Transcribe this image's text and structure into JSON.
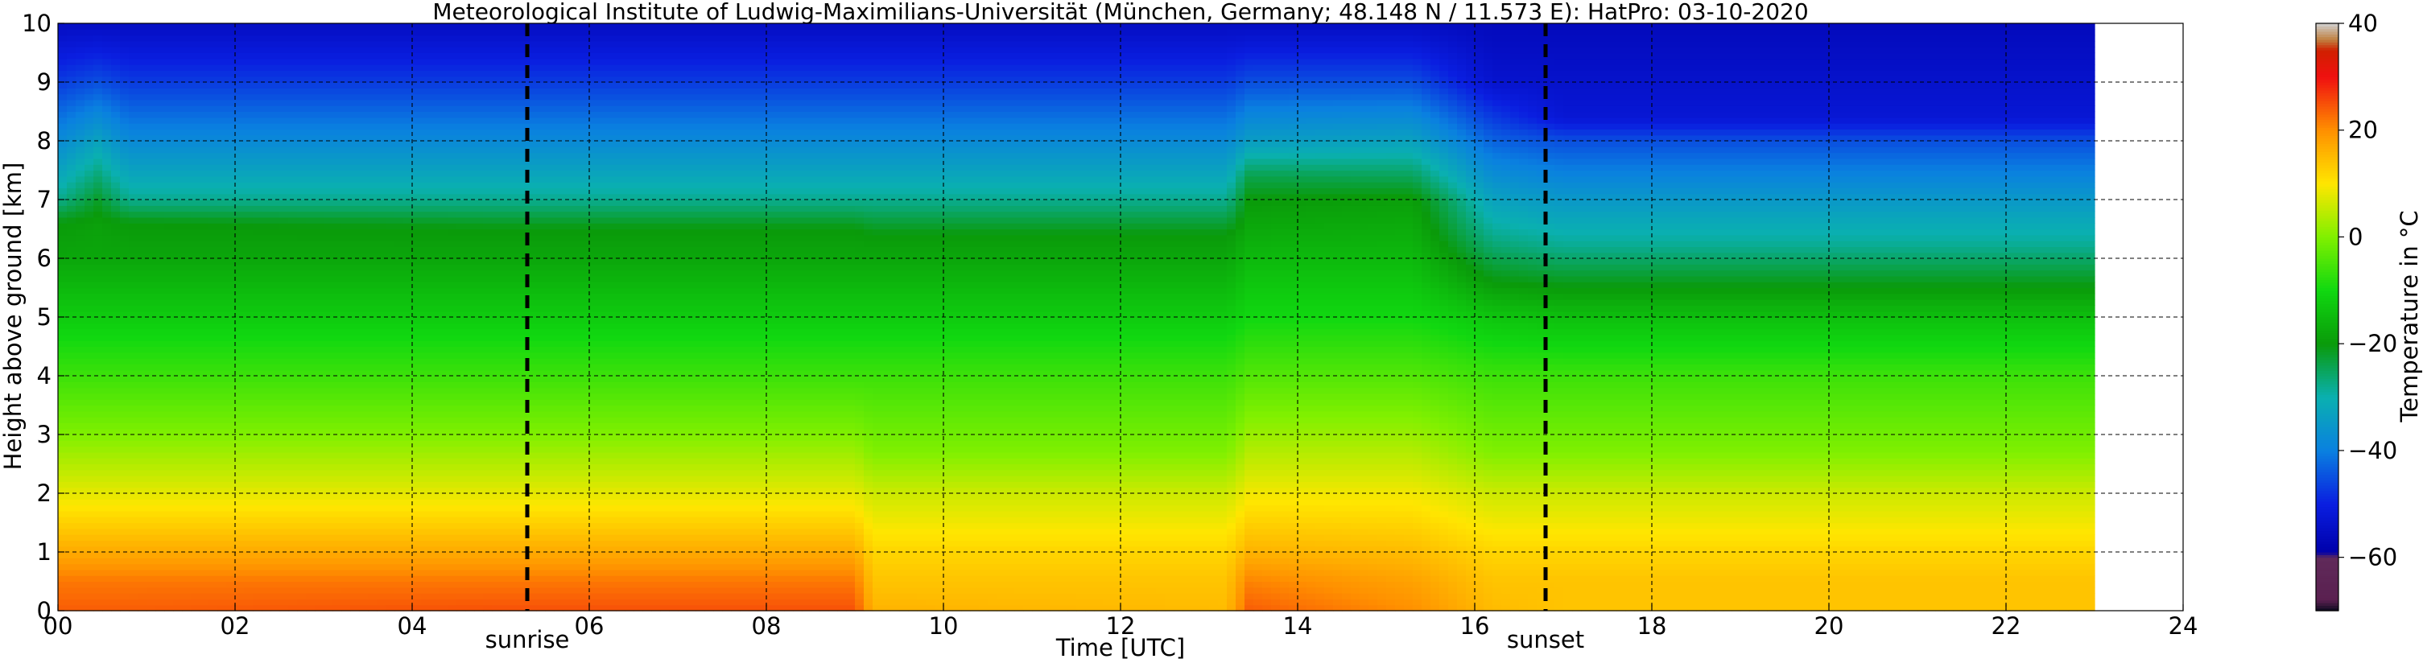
{
  "chart_data": {
    "type": "heatmap",
    "title": "Meteorological Institute of Ludwig-Maximilians-Universität (München, Germany; 48.148 N / 11.573 E):    HatPro: 03-10-2020",
    "xlabel": "Time [UTC]",
    "ylabel": "Height above ground [km]",
    "xlim": [
      0,
      24
    ],
    "ylim": [
      0,
      10
    ],
    "data_end_time": 23,
    "xticks": [
      {
        "value": 0,
        "label": "00"
      },
      {
        "value": 2,
        "label": "02"
      },
      {
        "value": 4,
        "label": "04"
      },
      {
        "value": 6,
        "label": "06"
      },
      {
        "value": 8,
        "label": "08"
      },
      {
        "value": 10,
        "label": "10"
      },
      {
        "value": 12,
        "label": "12"
      },
      {
        "value": 14,
        "label": "14"
      },
      {
        "value": 16,
        "label": "16"
      },
      {
        "value": 18,
        "label": "18"
      },
      {
        "value": 20,
        "label": "20"
      },
      {
        "value": 22,
        "label": "22"
      },
      {
        "value": 24,
        "label": "24"
      }
    ],
    "yticks": [
      {
        "value": 0,
        "label": "0"
      },
      {
        "value": 1,
        "label": "1"
      },
      {
        "value": 2,
        "label": "2"
      },
      {
        "value": 3,
        "label": "3"
      },
      {
        "value": 4,
        "label": "4"
      },
      {
        "value": 5,
        "label": "5"
      },
      {
        "value": 6,
        "label": "6"
      },
      {
        "value": 7,
        "label": "7"
      },
      {
        "value": 8,
        "label": "8"
      },
      {
        "value": 9,
        "label": "9"
      },
      {
        "value": 10,
        "label": "10"
      }
    ],
    "grid": true,
    "markers": [
      {
        "label": "sunrise",
        "time": 5.3
      },
      {
        "label": "sunset",
        "time": 16.8
      }
    ],
    "colorbar": {
      "label": "Temperature in °C",
      "min": -70,
      "max": 40,
      "ticks": [
        {
          "value": 40,
          "label": "40"
        },
        {
          "value": 20,
          "label": "20"
        },
        {
          "value": 0,
          "label": "0"
        },
        {
          "value": -20,
          "label": "−20"
        },
        {
          "value": -40,
          "label": "−40"
        },
        {
          "value": -60,
          "label": "−60"
        }
      ],
      "stops": [
        {
          "value": -70,
          "color": "#0a0a1e"
        },
        {
          "value": -68,
          "color": "#5a2050"
        },
        {
          "value": -60,
          "color": "#602a5a"
        },
        {
          "value": -59,
          "color": "#0000aa"
        },
        {
          "value": -50,
          "color": "#0a1ee0"
        },
        {
          "value": -40,
          "color": "#0a80e0"
        },
        {
          "value": -30,
          "color": "#0ab0b0"
        },
        {
          "value": -20,
          "color": "#0a9a0a"
        },
        {
          "value": -10,
          "color": "#10d810"
        },
        {
          "value": 0,
          "color": "#80f000"
        },
        {
          "value": 10,
          "color": "#ffe600"
        },
        {
          "value": 20,
          "color": "#ff9000"
        },
        {
          "value": 30,
          "color": "#f01010"
        },
        {
          "value": 35,
          "color": "#d02000"
        },
        {
          "value": 37,
          "color": "#c08040"
        },
        {
          "value": 40,
          "color": "#d0d0d0"
        }
      ]
    },
    "temperature_profiles": [
      {
        "time": 0.0,
        "heights": [
          0,
          0.5,
          1,
          2,
          3,
          4,
          5,
          6,
          6.6,
          7,
          8,
          9,
          10
        ],
        "temps": [
          24,
          22,
          17,
          8,
          0,
          -6,
          -12,
          -18,
          -20,
          -28,
          -38,
          -47,
          -55
        ]
      },
      {
        "time": 0.45,
        "heights": [
          0,
          0.5,
          1,
          2,
          3,
          4,
          5,
          6,
          6.6,
          7,
          8,
          9,
          10
        ],
        "temps": [
          24,
          22,
          17,
          8,
          0,
          -6,
          -12,
          -18,
          -19,
          -22,
          -33,
          -45,
          -55
        ]
      },
      {
        "time": 0.8,
        "heights": [
          0,
          0.5,
          1,
          2,
          3,
          4,
          5,
          6,
          6.6,
          7,
          8,
          9,
          10
        ],
        "temps": [
          24,
          22,
          17,
          8,
          0,
          -6,
          -12,
          -18,
          -20,
          -28,
          -38,
          -47,
          -55
        ]
      },
      {
        "time": 5.0,
        "heights": [
          0,
          0.5,
          1,
          2,
          3,
          4,
          5,
          6,
          6.5,
          7,
          8,
          9,
          10
        ],
        "temps": [
          25,
          22,
          17,
          8,
          0,
          -6,
          -12,
          -18,
          -20,
          -28,
          -38,
          -47,
          -55
        ]
      },
      {
        "time": 9.0,
        "heights": [
          0,
          0.5,
          1,
          2,
          3,
          4,
          5,
          6,
          6.5,
          7,
          8,
          9,
          10
        ],
        "temps": [
          25,
          22,
          17,
          8,
          0,
          -6,
          -12,
          -18,
          -20,
          -28,
          -38,
          -47,
          -55
        ]
      },
      {
        "time": 9.2,
        "heights": [
          0,
          0.5,
          1,
          2,
          2.7,
          4,
          5,
          6,
          6.4,
          7,
          8,
          9,
          10
        ],
        "temps": [
          16,
          14,
          12,
          6,
          0,
          -6,
          -12,
          -18,
          -20,
          -28,
          -38,
          -47,
          -55
        ]
      },
      {
        "time": 13.2,
        "heights": [
          0,
          0.5,
          1,
          2,
          2.7,
          4,
          5,
          6,
          6.4,
          7,
          8,
          9,
          10
        ],
        "temps": [
          15,
          14,
          12,
          6,
          0,
          -6,
          -12,
          -18,
          -20,
          -28,
          -38,
          -47,
          -55
        ]
      },
      {
        "time": 13.45,
        "heights": [
          0,
          0.5,
          1,
          2,
          3,
          4,
          5,
          6,
          7,
          7.4,
          8,
          9,
          10
        ],
        "temps": [
          24,
          21,
          16,
          9,
          2,
          -4,
          -10,
          -15,
          -20,
          -24,
          -34,
          -45,
          -55
        ]
      },
      {
        "time": 15.3,
        "heights": [
          0,
          0.5,
          1,
          2,
          3,
          4,
          5,
          6,
          7,
          7.2,
          8,
          9,
          10
        ],
        "temps": [
          20,
          18,
          15,
          9,
          2,
          -4,
          -10,
          -15,
          -19,
          -22,
          -33,
          -45,
          -55
        ]
      },
      {
        "time": 16.2,
        "heights": [
          0,
          0.5,
          1,
          2,
          2.7,
          4,
          5,
          5.6,
          6.4,
          7,
          8,
          9,
          10
        ],
        "temps": [
          15,
          14,
          12,
          6,
          0,
          -6,
          -13,
          -20,
          -28,
          -33,
          -43,
          -53,
          -56
        ]
      },
      {
        "time": 17.0,
        "heights": [
          0,
          0.5,
          1,
          2,
          2.7,
          4,
          5,
          5.5,
          6.2,
          7,
          8,
          8.4,
          10
        ],
        "temps": [
          14,
          14,
          12,
          6,
          0,
          -6,
          -14,
          -20,
          -28,
          -35,
          -45,
          -52,
          -56
        ]
      },
      {
        "time": 23.0,
        "heights": [
          0,
          0.5,
          1,
          2,
          2.7,
          4,
          5,
          5.5,
          6.2,
          7,
          8,
          8.4,
          10
        ],
        "temps": [
          14,
          14,
          12,
          6,
          0,
          -6,
          -14,
          -20,
          -28,
          -35,
          -45,
          -52,
          -56
        ]
      }
    ]
  }
}
